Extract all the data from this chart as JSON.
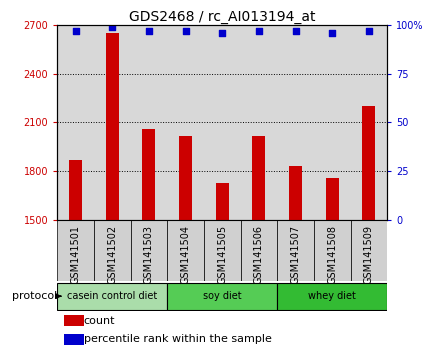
{
  "title": "GDS2468 / rc_AI013194_at",
  "samples": [
    "GSM141501",
    "GSM141502",
    "GSM141503",
    "GSM141504",
    "GSM141505",
    "GSM141506",
    "GSM141507",
    "GSM141508",
    "GSM141509"
  ],
  "counts": [
    1870,
    2650,
    2060,
    2020,
    1730,
    2020,
    1830,
    1760,
    2200
  ],
  "percentile_ranks": [
    97,
    99,
    97,
    97,
    96,
    97,
    97,
    96,
    97
  ],
  "ylim_left": [
    1500,
    2700
  ],
  "ylim_right": [
    0,
    100
  ],
  "yticks_left": [
    1500,
    1800,
    2100,
    2400,
    2700
  ],
  "yticks_right": [
    0,
    25,
    50,
    75,
    100
  ],
  "bar_color": "#cc0000",
  "dot_color": "#0000cc",
  "protocol_groups": [
    {
      "label": "casein control diet",
      "start": 0,
      "end": 3,
      "color": "#aaddaa"
    },
    {
      "label": "soy diet",
      "start": 3,
      "end": 6,
      "color": "#55cc55"
    },
    {
      "label": "whey diet",
      "start": 6,
      "end": 9,
      "color": "#33bb33"
    }
  ],
  "protocol_label": "protocol",
  "legend_count_label": "count",
  "legend_percentile_label": "percentile rank within the sample",
  "bar_width": 0.35,
  "tick_label_fontsize": 7,
  "title_fontsize": 10
}
